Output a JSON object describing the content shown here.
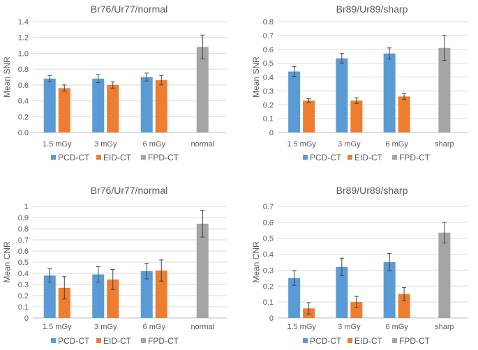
{
  "colors": {
    "pcd": "#5b9bd5",
    "eid": "#ed7d31",
    "fpd": "#a5a5a5",
    "grid": "#d9d9d9",
    "axis": "#bfbfbf",
    "text": "#595959"
  },
  "chart_data": [
    {
      "type": "bar",
      "title": "Br76/Ur77/normal",
      "ylabel": "Mean SNR",
      "xlabel": "",
      "categories": [
        "1.5 mGy",
        "3 mGy",
        "6 mGy",
        "normal"
      ],
      "ylim": [
        0,
        1.4
      ],
      "yticks": [
        "0.0",
        "0.2",
        "0.4",
        "0.6",
        "0.8",
        "1.0",
        "1.2",
        "1.4"
      ],
      "ytick_values": [
        0,
        0.2,
        0.4,
        0.6,
        0.8,
        1.0,
        1.2,
        1.4
      ],
      "series": [
        {
          "name": "PCD-CT",
          "values": [
            0.68,
            0.68,
            0.7,
            null
          ],
          "errors": [
            0.04,
            0.05,
            0.05,
            null
          ]
        },
        {
          "name": "EID-CT",
          "values": [
            0.56,
            0.6,
            0.66,
            null
          ],
          "errors": [
            0.04,
            0.04,
            0.06,
            null
          ]
        },
        {
          "name": "FPD-CT",
          "values": [
            null,
            null,
            null,
            1.08
          ],
          "errors": [
            null,
            null,
            null,
            0.15
          ]
        }
      ],
      "legend": [
        "PCD-CT",
        "EID-CT",
        "FPD-CT"
      ],
      "legend_position": "bottom"
    },
    {
      "type": "bar",
      "title": "Br89/Ur89/sharp",
      "ylabel": "Mean SNR",
      "xlabel": "",
      "categories": [
        "1.5 mGy",
        "3 mGy",
        "6 mGy",
        "sharp"
      ],
      "ylim": [
        0,
        0.8
      ],
      "yticks": [
        "0",
        "0.1",
        "0.2",
        "0.3",
        "0.4",
        "0.5",
        "0.6",
        "0.7",
        "0.8"
      ],
      "ytick_values": [
        0,
        0.1,
        0.2,
        0.3,
        0.4,
        0.5,
        0.6,
        0.7,
        0.8
      ],
      "series": [
        {
          "name": "PCD-CT",
          "values": [
            0.44,
            0.535,
            0.57,
            null
          ],
          "errors": [
            0.035,
            0.035,
            0.04,
            null
          ]
        },
        {
          "name": "EID-CT",
          "values": [
            0.23,
            0.23,
            0.26,
            null
          ],
          "errors": [
            0.015,
            0.02,
            0.02,
            null
          ]
        },
        {
          "name": "FPD-CT",
          "values": [
            null,
            null,
            null,
            0.61
          ],
          "errors": [
            null,
            null,
            null,
            0.09
          ]
        }
      ],
      "legend": [
        "PCD-CT",
        "EID-CT",
        "FPD-CT"
      ],
      "legend_position": "bottom"
    },
    {
      "type": "bar",
      "title": "Br76/Ur77/normal",
      "ylabel": "Mean CNR",
      "xlabel": "",
      "categories": [
        "1.5 mGy",
        "3 mGy",
        "6 mGy",
        "normal"
      ],
      "ylim": [
        0,
        1
      ],
      "yticks": [
        "0",
        "0.1",
        "0.2",
        "0.3",
        "0.4",
        "0.5",
        "0.6",
        "0.7",
        "0.8",
        "0.9",
        "1"
      ],
      "ytick_values": [
        0,
        0.1,
        0.2,
        0.3,
        0.4,
        0.5,
        0.6,
        0.7,
        0.8,
        0.9,
        1
      ],
      "series": [
        {
          "name": "PCD-CT",
          "values": [
            0.38,
            0.39,
            0.42,
            null
          ],
          "errors": [
            0.06,
            0.07,
            0.07,
            null
          ]
        },
        {
          "name": "EID-CT",
          "values": [
            0.27,
            0.345,
            0.425,
            null
          ],
          "errors": [
            0.1,
            0.09,
            0.095,
            null
          ]
        },
        {
          "name": "FPD-CT",
          "values": [
            null,
            null,
            null,
            0.845
          ],
          "errors": [
            null,
            null,
            null,
            0.12
          ]
        }
      ],
      "legend": [
        "PCD-CT",
        "EID-CT",
        "FPD-CT"
      ],
      "legend_position": "bottom"
    },
    {
      "type": "bar",
      "title": "Br89/Ur89/sharp",
      "ylabel": "Mean CNR",
      "xlabel": "",
      "categories": [
        "1.5 mGy",
        "3 mGy",
        "6 mGy",
        "sharp"
      ],
      "ylim": [
        0,
        0.7
      ],
      "yticks": [
        "0",
        "0.1",
        "0.2",
        "0.3",
        "0.4",
        "0.5",
        "0.6",
        "0.7"
      ],
      "ytick_values": [
        0,
        0.1,
        0.2,
        0.3,
        0.4,
        0.5,
        0.6,
        0.7
      ],
      "series": [
        {
          "name": "PCD-CT",
          "values": [
            0.25,
            0.32,
            0.35,
            null
          ],
          "errors": [
            0.045,
            0.055,
            0.055,
            null
          ]
        },
        {
          "name": "EID-CT",
          "values": [
            0.06,
            0.1,
            0.15,
            null
          ],
          "errors": [
            0.035,
            0.035,
            0.04,
            null
          ]
        },
        {
          "name": "FPD-CT",
          "values": [
            null,
            null,
            null,
            0.535
          ],
          "errors": [
            null,
            null,
            null,
            0.065
          ]
        }
      ],
      "legend": [
        "PCD-CT",
        "EID-CT",
        "FPD-CT"
      ],
      "legend_position": "bottom"
    }
  ]
}
